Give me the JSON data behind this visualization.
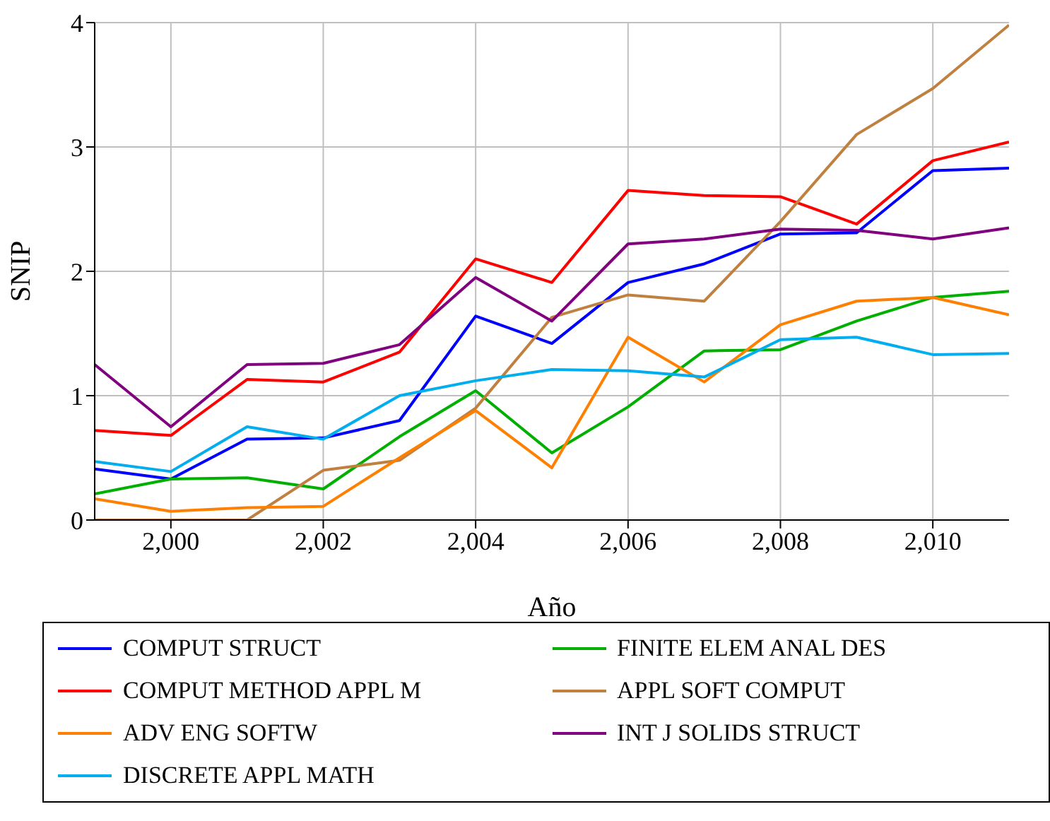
{
  "chart_data": {
    "type": "line",
    "xlabel": "Año",
    "ylabel": "SNIP",
    "x": [
      1999,
      2000,
      2001,
      2002,
      2003,
      2004,
      2005,
      2006,
      2007,
      2008,
      2009,
      2010,
      2011
    ],
    "xlim": [
      1999,
      2011
    ],
    "xticks": [
      {
        "value": 2000,
        "label": "2,000"
      },
      {
        "value": 2002,
        "label": "2,002"
      },
      {
        "value": 2004,
        "label": "2,004"
      },
      {
        "value": 2006,
        "label": "2,006"
      },
      {
        "value": 2008,
        "label": "2,008"
      },
      {
        "value": 2010,
        "label": "2,010"
      }
    ],
    "ylim": [
      0,
      4
    ],
    "yticks": [
      0,
      1,
      2,
      3,
      4
    ],
    "grid": true,
    "legend": "bottom",
    "marker": "none",
    "line_style": "solid",
    "series": [
      {
        "name": "COMPUT STRUCT",
        "color": "#0000ff",
        "values": [
          0.41,
          0.33,
          0.65,
          0.66,
          0.8,
          1.64,
          1.42,
          1.91,
          2.06,
          2.3,
          2.31,
          2.81,
          2.83
        ]
      },
      {
        "name": "FINITE ELEM ANAL DES",
        "color": "#00b000",
        "values": [
          0.21,
          0.33,
          0.34,
          0.25,
          0.67,
          1.04,
          0.54,
          0.91,
          1.36,
          1.37,
          1.6,
          1.79,
          1.84
        ]
      },
      {
        "name": "COMPUT METHOD APPL M",
        "color": "#ff0000",
        "values": [
          0.72,
          0.68,
          1.13,
          1.11,
          1.35,
          2.1,
          1.91,
          2.65,
          2.61,
          2.6,
          2.38,
          2.89,
          3.04
        ]
      },
      {
        "name": "APPL SOFT COMPUT",
        "color": "#bf8040",
        "values": [
          0,
          0,
          0,
          0.4,
          0.48,
          0.9,
          1.63,
          1.81,
          1.76,
          2.4,
          3.1,
          3.47,
          3.98
        ]
      },
      {
        "name": "ADV ENG SOFTW",
        "color": "#ff8000",
        "values": [
          0.17,
          0.07,
          0.1,
          0.11,
          0.5,
          0.88,
          0.42,
          1.47,
          1.11,
          1.57,
          1.76,
          1.79,
          1.65
        ]
      },
      {
        "name": "INT J SOLIDS STRUCT",
        "color": "#800080",
        "values": [
          1.25,
          0.75,
          1.25,
          1.26,
          1.41,
          1.95,
          1.6,
          2.22,
          2.26,
          2.34,
          2.33,
          2.26,
          2.35
        ]
      },
      {
        "name": "DISCRETE APPL MATH",
        "color": "#00aeef",
        "values": [
          0.47,
          0.39,
          0.75,
          0.65,
          1.0,
          1.12,
          1.21,
          1.2,
          1.15,
          1.45,
          1.47,
          1.33,
          1.34
        ]
      }
    ]
  }
}
